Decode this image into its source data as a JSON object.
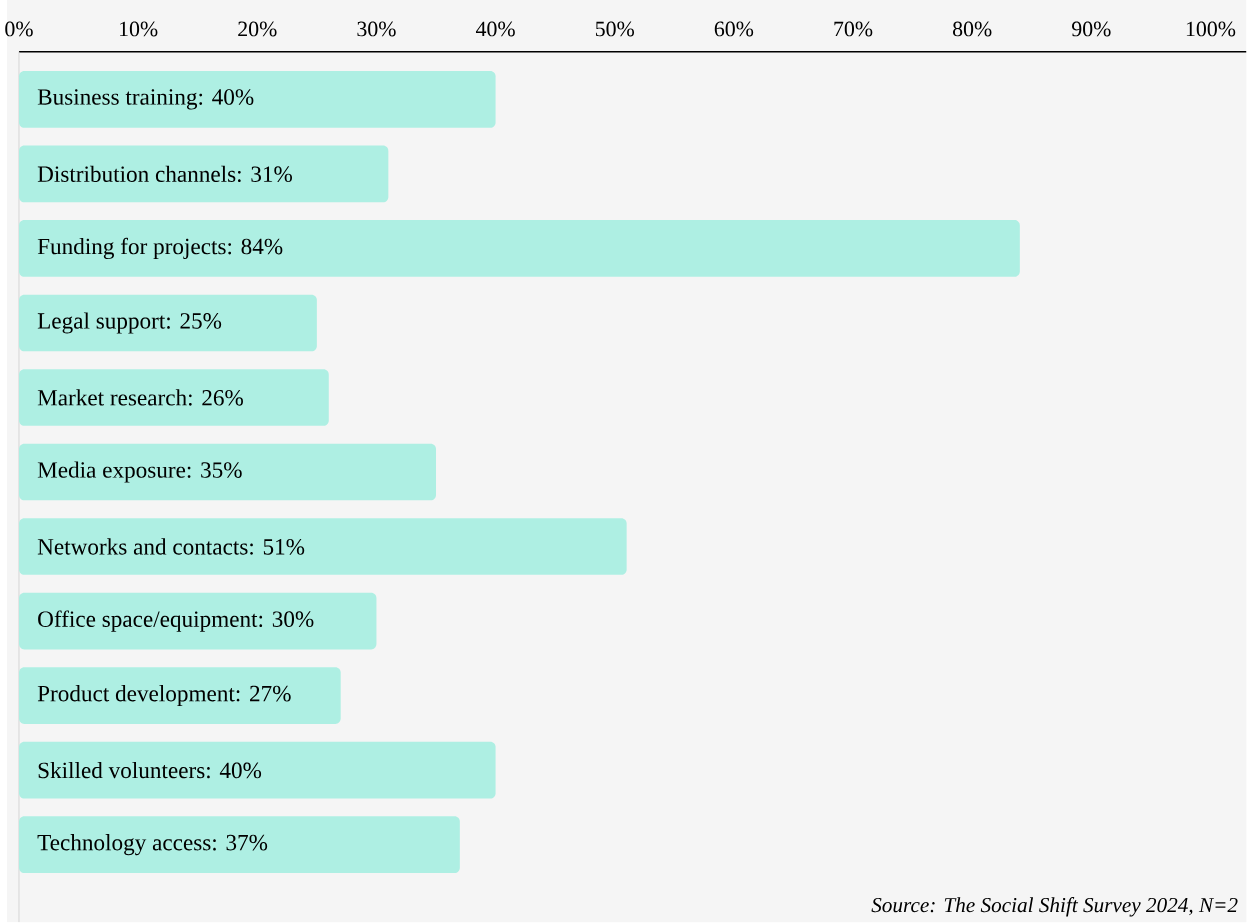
{
  "chart_data": {
    "type": "bar",
    "orientation": "horizontal",
    "categories": [
      "Business training: 40%",
      "Distribution channels: 31%",
      "Funding for projects: 84%",
      "Legal support: 25%",
      "Market research: 26%",
      "Media exposure: 35%",
      "Networks and contacts: 51%",
      "Office space/equipment: 30%",
      "Product development: 27%",
      "Skilled volunteers: 40%",
      "Technology access: 37%"
    ],
    "values": [
      40,
      31,
      84,
      25,
      26,
      35,
      51,
      30,
      27,
      40,
      37
    ],
    "color": "#aeefe3",
    "xlim": [
      0,
      103
    ],
    "xticks": [
      {
        "value": 0,
        "label": "0%"
      },
      {
        "value": 10,
        "label": "10%"
      },
      {
        "value": 20,
        "label": "20%"
      },
      {
        "value": 30,
        "label": "30%"
      },
      {
        "value": 40,
        "label": "40%"
      },
      {
        "value": 50,
        "label": "50%"
      },
      {
        "value": 60,
        "label": "60%"
      },
      {
        "value": 70,
        "label": "70%"
      },
      {
        "value": 80,
        "label": "80%"
      },
      {
        "value": 90,
        "label": "90%"
      },
      {
        "value": 100,
        "label": "100%"
      }
    ],
    "tick_labels": "x",
    "grid": false,
    "annotations": [
      "Source: The Social Shift Survey 2024, N=2"
    ]
  }
}
